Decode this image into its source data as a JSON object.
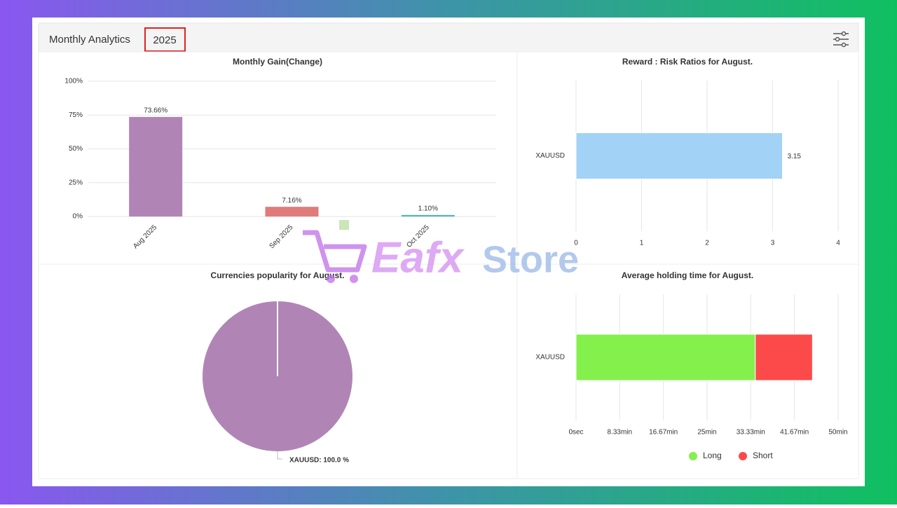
{
  "header": {
    "title": "Monthly Analytics",
    "year": "2025"
  },
  "watermark": {
    "part1": "Eafx",
    "part2": "Store"
  },
  "chart_data": [
    {
      "type": "bar",
      "title": "Monthly Gain(Change)",
      "categories": [
        "Aug 2025",
        "Sep 2025",
        "Oct 2025"
      ],
      "values": [
        73.66,
        7.16,
        1.1
      ],
      "value_labels": [
        "73.66%",
        "7.16%",
        "1.10%"
      ],
      "colors": [
        "#b085b5",
        "#e07b7b",
        "#4cb8b0"
      ],
      "ylim": [
        0,
        100
      ],
      "yticks": [
        {
          "value": 0,
          "label": "0%"
        },
        {
          "value": 25,
          "label": "25%"
        },
        {
          "value": 50,
          "label": "50%"
        },
        {
          "value": 75,
          "label": "75%"
        },
        {
          "value": 100,
          "label": "100%"
        }
      ],
      "grid": true
    },
    {
      "type": "hbar",
      "title": "Reward : Risk Ratios for August.",
      "categories": [
        "XAUUSD"
      ],
      "series": [
        {
          "color": "#a3d2f7",
          "values": [
            3.15
          ]
        }
      ],
      "xlim": [
        0,
        4
      ],
      "xticks": [
        0,
        1,
        2,
        3,
        4
      ],
      "grid": true,
      "value_text": true
    },
    {
      "type": "pie",
      "title": "Currencies popularity for August.",
      "values": [
        100
      ],
      "value_labels": [
        "XAUUSD: 100.0 %"
      ],
      "colors": [
        "#b085b5"
      ]
    },
    {
      "type": "hbar",
      "title": "Average holding time for August.",
      "categories": [
        "XAUUSD"
      ],
      "series": [
        {
          "name": "Long",
          "color": "#84f04c",
          "values": [
            34.2
          ]
        },
        {
          "name": "Short",
          "color": "#fc4a4a",
          "values": [
            10.9
          ]
        }
      ],
      "xlim": [
        0,
        50
      ],
      "xticks": [
        {
          "value": 0,
          "label": "0sec"
        },
        {
          "value": 8.33,
          "label": "8.33min"
        },
        {
          "value": 16.67,
          "label": "16.67min"
        },
        {
          "value": 25,
          "label": "25min"
        },
        {
          "value": 33.33,
          "label": "33.33min"
        },
        {
          "value": 41.67,
          "label": "41.67min"
        },
        {
          "value": 50,
          "label": "50min"
        }
      ],
      "grid": true,
      "legend": "bottom"
    }
  ]
}
